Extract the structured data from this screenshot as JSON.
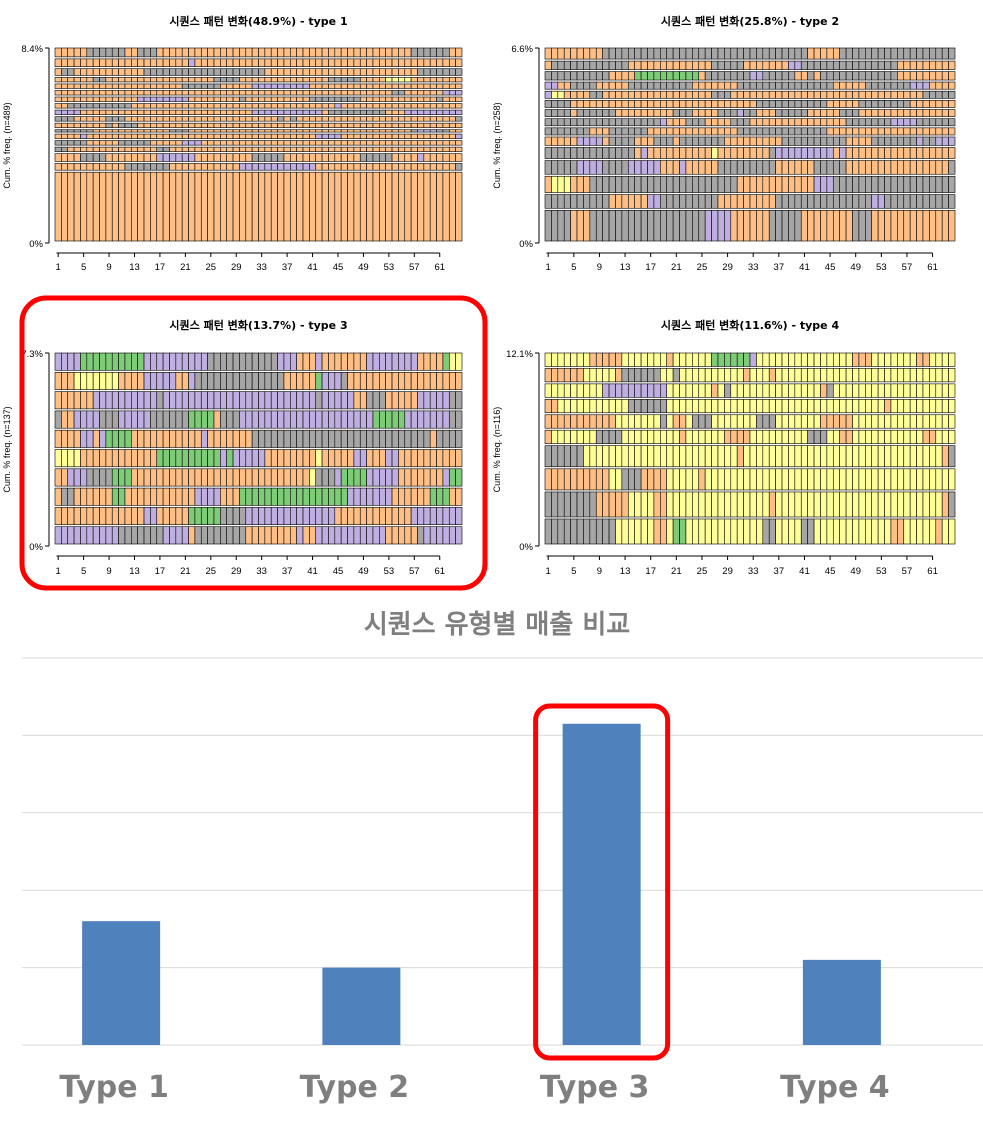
{
  "colors": {
    "state_a": "#fdbf85",
    "state_b": "#a6a6a6",
    "state_c": "#bfaee0",
    "state_d": "#ffff99",
    "state_e": "#7fcc78",
    "bar": "#4f81bd",
    "highlight": "#ff0000",
    "grid": "#d9d9d9",
    "bar_text": "#7f7f7f"
  },
  "x_ticks": [
    "1",
    "5",
    "9",
    "13",
    "17",
    "21",
    "25",
    "29",
    "33",
    "37",
    "41",
    "45",
    "49",
    "53",
    "57",
    "61"
  ],
  "sequence_plots": [
    {
      "title": "시퀀스 패턴 변화(48.9%) - type 1",
      "ylabel": "Cum. % freq. (n=489)",
      "ymax_label": "8.4%",
      "ymin_label": "0%",
      "highlighted": false
    },
    {
      "title": "시퀀스 패턴 변화(25.8%) - type 2",
      "ylabel": "Cum. % freq. (n=258)",
      "ymax_label": "6.6%",
      "ymin_label": "0%",
      "highlighted": false
    },
    {
      "title": "시퀀스 패턴 변화(13.7%) - type 3",
      "ylabel": "Cum. % freq. (n=137)",
      "ymax_label": "7.3%",
      "ymin_label": "0%",
      "highlighted": true
    },
    {
      "title": "시퀀스 패턴 변화(11.6%) - type 4",
      "ylabel": "Cum. % freq. (n=116)",
      "ymax_label": "12.1%",
      "ymin_label": "0%",
      "highlighted": false
    }
  ],
  "chart_data": {
    "type": "bar",
    "title": "시퀀스 유형별 매출 비교",
    "categories": [
      "Type 1",
      "Type 2",
      "Type 3",
      "Type 4"
    ],
    "values": [
      1.6,
      1.0,
      4.15,
      1.1
    ],
    "ylim": [
      0,
      5
    ],
    "grid": true,
    "highlighted_category": "Type 3"
  }
}
